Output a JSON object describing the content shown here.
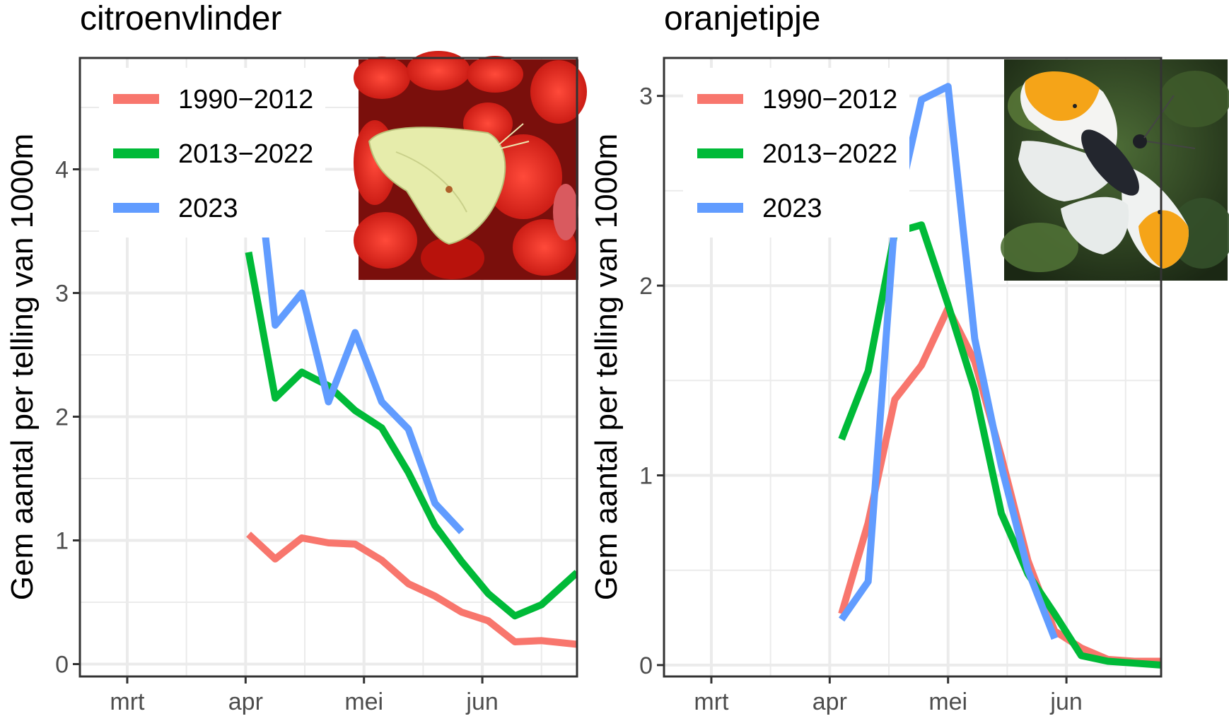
{
  "chart_data": [
    {
      "type": "line",
      "title": "citroenvlinder",
      "xlabel": "",
      "ylabel": "Gem aantal per telling van 1000m",
      "x_ticks": [
        "mrt",
        "apr",
        "mei",
        "jun"
      ],
      "x_unit": "week of year",
      "x_tick_positions": [
        9,
        13,
        17,
        21
      ],
      "xlim": [
        7.4,
        24.2
      ],
      "ylim": [
        -0.1,
        4.9
      ],
      "y_ticks": [
        0,
        1,
        2,
        3,
        4
      ],
      "grid": true,
      "legend_position": "top-left",
      "photo": "brimstone butterfly photo (top-right)",
      "series": [
        {
          "name": "1990−2012",
          "color": "#F8766D",
          "x": [
            13.1,
            14.0,
            14.9,
            15.8,
            16.7,
            17.6,
            18.5,
            19.4,
            20.3,
            21.2,
            22.1,
            23.0,
            24.2
          ],
          "y": [
            1.05,
            0.85,
            1.02,
            0.98,
            0.97,
            0.84,
            0.65,
            0.55,
            0.42,
            0.35,
            0.18,
            0.19,
            0.16
          ]
        },
        {
          "name": "2013−2022",
          "color": "#00BA38",
          "x": [
            13.1,
            14.0,
            14.9,
            15.8,
            16.7,
            17.6,
            18.5,
            19.4,
            20.3,
            21.2,
            22.1,
            23.0,
            24.2
          ],
          "y": [
            3.33,
            2.15,
            2.36,
            2.25,
            2.05,
            1.91,
            1.55,
            1.12,
            0.83,
            0.57,
            0.39,
            0.48,
            0.74
          ]
        },
        {
          "name": "2023",
          "color": "#619CFF",
          "x": [
            13.1,
            14.0,
            14.9,
            15.8,
            16.7,
            17.6,
            18.5,
            19.4,
            20.3
          ],
          "y": [
            4.7,
            2.74,
            3.0,
            2.12,
            2.68,
            2.12,
            1.9,
            1.3,
            1.07
          ]
        }
      ]
    },
    {
      "type": "line",
      "title": "oranjetipje",
      "xlabel": "",
      "ylabel": "Gem aantal per telling van 1000m",
      "x_ticks": [
        "mrt",
        "apr",
        "mei",
        "jun"
      ],
      "x_unit": "week of year",
      "x_tick_positions": [
        9,
        13,
        17,
        21
      ],
      "xlim": [
        7.4,
        24.2
      ],
      "ylim": [
        -0.06,
        3.2
      ],
      "y_ticks": [
        0,
        1,
        2,
        3
      ],
      "grid": true,
      "legend_position": "top-left",
      "photo": "orange tip butterfly photo (top-right)",
      "series": [
        {
          "name": "1990−2012",
          "color": "#F8766D",
          "x": [
            13.4,
            14.3,
            15.2,
            16.1,
            17.0,
            17.9,
            18.8,
            19.7,
            20.6,
            21.5,
            22.4,
            23.3,
            24.2
          ],
          "y": [
            0.27,
            0.75,
            1.4,
            1.58,
            1.88,
            1.6,
            1.1,
            0.55,
            0.18,
            0.09,
            0.03,
            0.02,
            0.02
          ]
        },
        {
          "name": "2013−2022",
          "color": "#00BA38",
          "x": [
            13.4,
            14.3,
            15.2,
            16.1,
            17.0,
            17.9,
            18.8,
            19.7,
            20.6,
            21.5,
            22.4,
            23.3,
            24.2
          ],
          "y": [
            1.19,
            1.55,
            2.28,
            2.32,
            1.9,
            1.45,
            0.8,
            0.48,
            0.27,
            0.05,
            0.02,
            0.01,
            0.0
          ]
        },
        {
          "name": "2023",
          "color": "#619CFF",
          "x": [
            13.4,
            14.3,
            15.2,
            16.1,
            17.0,
            17.9,
            18.8,
            19.7,
            20.6
          ],
          "y": [
            0.24,
            0.44,
            2.35,
            2.98,
            3.05,
            1.72,
            1.05,
            0.5,
            0.14
          ]
        }
      ]
    }
  ]
}
